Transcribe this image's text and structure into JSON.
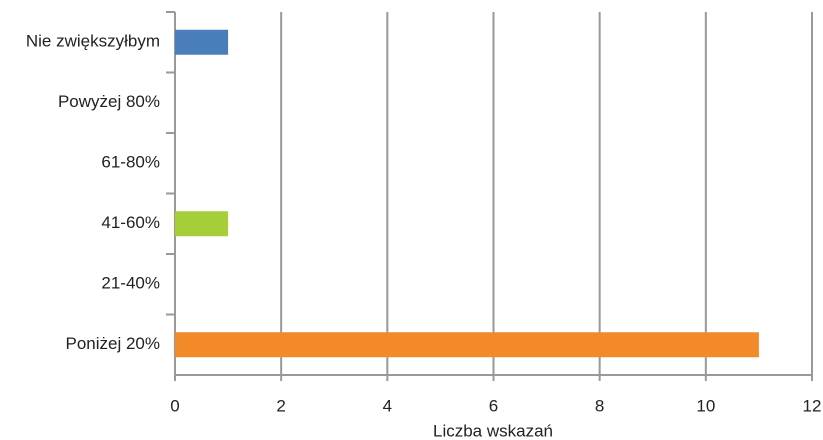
{
  "chart_data": {
    "type": "hbar",
    "categories": [
      "Nie zwiększyłbym",
      "Powyżej 80%",
      "61-80%",
      "41-60%",
      "21-40%",
      "Poniżej 20%"
    ],
    "values": [
      1,
      0,
      0,
      1,
      0,
      11
    ],
    "colors": [
      "#4a7ebb",
      "#4a7ebb",
      "#4a7ebb",
      "#a6ce39",
      "#f28a2a",
      "#f28a2a"
    ],
    "xlabel": "Liczba wskazań",
    "xlim": [
      0,
      12
    ],
    "xticks": [
      0,
      2,
      4,
      6,
      8,
      10,
      12
    ],
    "grid": true
  }
}
